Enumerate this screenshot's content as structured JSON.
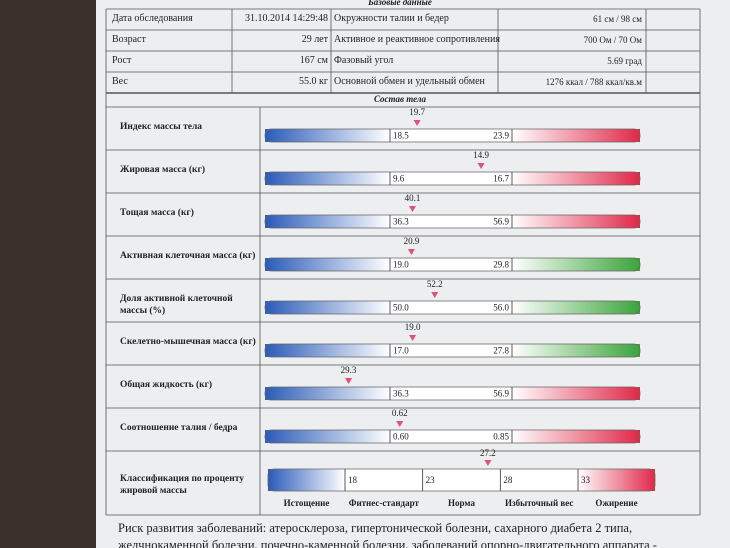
{
  "header": {
    "title": "Базовые данные"
  },
  "base_table": {
    "rows": [
      [
        "Дата обследования",
        "31.10.2014 14:29:48",
        "Окружности талии и бедер",
        "61 см / 98 см"
      ],
      [
        "Возраст",
        "29 лет",
        "Активное и реактивное сопротивления",
        "700 Ом / 70 Ом"
      ],
      [
        "Рост",
        "167 см",
        "Фазовый угол",
        "5.69 град"
      ],
      [
        "Вес",
        "55.0 кг",
        "Основной обмен и удельный обмен",
        "1276 ккал / 788 ккал/кв.м"
      ]
    ]
  },
  "composition": {
    "title": "Состав тела",
    "indicators": [
      {
        "label": "Индекс массы тела",
        "value": 19.7,
        "low": 18.5,
        "high": 23.9,
        "color": "red"
      },
      {
        "label": "Жировая масса (кг)",
        "value": 14.9,
        "low": 9.6,
        "high": 16.7,
        "color": "red"
      },
      {
        "label": "Тощая масса (кг)",
        "value": 40.1,
        "low": 36.3,
        "high": 56.9,
        "color": "red"
      },
      {
        "label": "Активная клеточная масса (кг)",
        "value": 20.9,
        "low": {
          "value": 19,
          "label": "19.0"
        },
        "high": 29.8,
        "color": "green"
      },
      {
        "label": "Доля активной клеточной массы (%)",
        "value": 52.2,
        "low": {
          "value": 50,
          "label": "50.0"
        },
        "high": {
          "value": 56,
          "label": "56.0"
        },
        "color": "green"
      },
      {
        "label": "Скелетно-мышечная масса (кг)",
        "value": {
          "value": 19,
          "label": "19.0"
        },
        "low": {
          "value": 17,
          "label": "17.0"
        },
        "high": 27.8,
        "color": "green"
      },
      {
        "label": "Общая жидкость (кг)",
        "value": 29.3,
        "low": 36.3,
        "high": 56.9,
        "color": "red"
      },
      {
        "label": "Соотношение талия / бедра",
        "value": 0.62,
        "low": {
          "value": 0.6,
          "label": "0.60"
        },
        "high": 0.85,
        "color": "red"
      }
    ]
  },
  "classification": {
    "label": "Классификация по проценту жировой массы",
    "value": 27.2,
    "thresholds": [
      18,
      23,
      28,
      33
    ],
    "categories": [
      "Истощение",
      "Фитнес-стандарт",
      "Норма",
      "Избыточный вес",
      "Ожирение"
    ]
  },
  "footer": {
    "lines": [
      "Риск развития заболеваний: атеросклероза, гипертонической болезни, сахарного диабета 2 типа,",
      "желчнокаменной болезни, почечно-каменной болезни, заболеваний опорно-двигательного аппарата -"
    ]
  }
}
